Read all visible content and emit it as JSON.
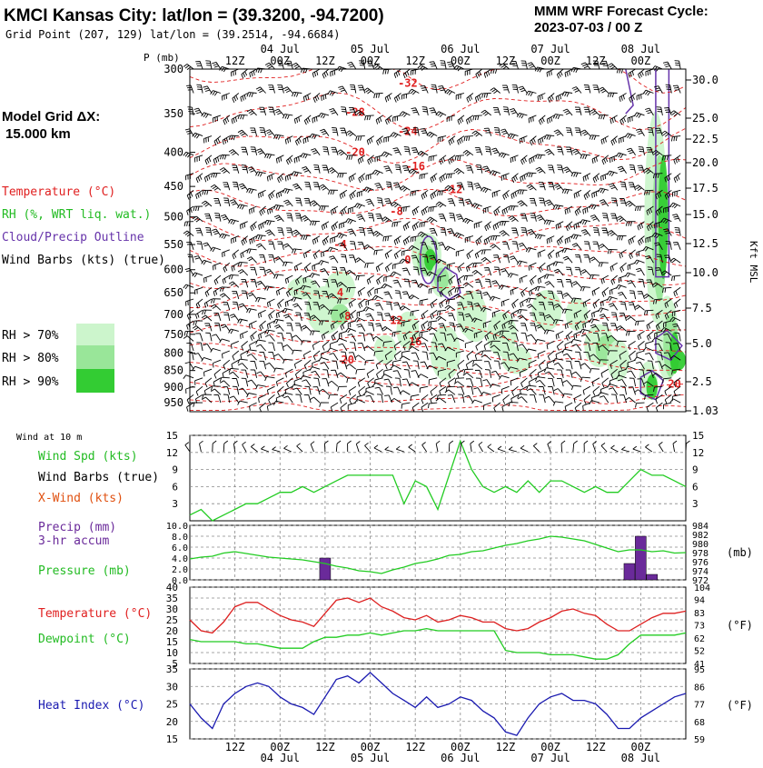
{
  "header": {
    "title": "KMCI Kansas City:  lat/lon = (39.3200, -94.7200)",
    "subtitle": "Grid Point (207, 129) lat/lon = (39.2514, -94.6684)",
    "cycle_line1": "MMM WRF Forecast Cycle:",
    "cycle_line2": "2023-07-03 / 00  Z"
  },
  "left_labels": {
    "grid_line1": "Model Grid ΔX:",
    "grid_line2": "15.000 km",
    "temperature": "Temperature (°C)",
    "rh": "RH (%, WRT liq. wat.)",
    "cloud": "Cloud/Precip Outline",
    "wind_barbs": "Wind Barbs (kts) (true)",
    "rh70": "RH > 70%",
    "rh80": "RH > 80%",
    "rh90": "RH > 90%",
    "wind10m": "Wind at 10 m",
    "wind_spd": "Wind Spd (kts)",
    "wind_barbs_true": "Wind Barbs (true)",
    "xwind": "X-Wind (kts)",
    "precip1": "Precip (mm)",
    "precip2": "3-hr accum",
    "pressure": "Pressure (mb)",
    "temp2": "Temperature (°C)",
    "dew": "Dewpoint (°C)",
    "heat": "Heat Index (°C)"
  },
  "colors": {
    "temp": "#e02020",
    "rh": "#33cc33",
    "rh70": "#ccf5cc",
    "rh80": "#99e699",
    "rh90": "#33cc33",
    "cloud": "#6633aa",
    "precip": "#6a2a9a",
    "dew": "#22cc22",
    "heat": "#1a1ab0"
  },
  "axes": {
    "top_units": "P (mb)",
    "pressure_levels": [
      "300",
      "350",
      "400",
      "450",
      "500",
      "550",
      "600",
      "650",
      "700",
      "750",
      "800",
      "850",
      "900",
      "950"
    ],
    "height_ticks": [
      "30.0",
      "25.0",
      "22.5",
      "20.0",
      "17.5",
      "15.0",
      "12.5",
      "10.0",
      "7.5",
      "5.0",
      "2.5",
      "1.03"
    ],
    "height_label": "Kft MSL",
    "time_hour_labels": [
      "12Z",
      "00Z",
      "12Z",
      "00Z",
      "12Z",
      "00Z",
      "12Z",
      "00Z",
      "12Z",
      "00Z"
    ],
    "time_hour_values": [
      12,
      24,
      36,
      48,
      60,
      72,
      84,
      96,
      108,
      120
    ],
    "day_labels": [
      "04 Jul",
      "05 Jul",
      "06 Jul",
      "07 Jul",
      "08 Jul"
    ],
    "day_values": [
      24,
      48,
      72,
      96,
      120
    ],
    "wind_ticks": [
      "15",
      "12",
      "9",
      "6",
      "3"
    ],
    "precip_ticks": [
      "10.0",
      "8.0",
      "6.0",
      "4.0",
      "2.0",
      "0.0"
    ],
    "press_ticks": [
      "984",
      "982",
      "980",
      "978",
      "976",
      "974",
      "972"
    ],
    "press_unit": "(mb)",
    "temp_c_ticks": [
      "40",
      "35",
      "30",
      "25",
      "20",
      "15",
      "10",
      "5"
    ],
    "temp_f_ticks": [
      "104",
      "94",
      "83",
      "73",
      "62",
      "52",
      "41"
    ],
    "temp_unit": "(°F)",
    "heat_c_ticks": [
      "35",
      "30",
      "25",
      "20",
      "15"
    ],
    "heat_f_ticks": [
      "95",
      "86",
      "77",
      "68",
      "59"
    ],
    "heat_unit": "(°F)"
  },
  "contour_labels": [
    {
      "text": "-32",
      "t": 58,
      "p": 315
    },
    {
      "text": "-28",
      "t": 44,
      "p": 348
    },
    {
      "text": "-24",
      "t": 58,
      "p": 372
    },
    {
      "text": "-20",
      "t": 44,
      "p": 400
    },
    {
      "text": "-16",
      "t": 60,
      "p": 420
    },
    {
      "text": "-12",
      "t": 70,
      "p": 455
    },
    {
      "text": "-8",
      "t": 55,
      "p": 490
    },
    {
      "text": "-4",
      "t": 40,
      "p": 550
    },
    {
      "text": "0",
      "t": 58,
      "p": 580
    },
    {
      "text": "4",
      "t": 40,
      "p": 650
    },
    {
      "text": "8",
      "t": 42,
      "p": 705
    },
    {
      "text": "12",
      "t": 55,
      "p": 715
    },
    {
      "text": "16",
      "t": 60,
      "p": 770
    },
    {
      "text": "20",
      "t": 42,
      "p": 820
    },
    {
      "text": "20",
      "t": 129,
      "p": 890
    }
  ],
  "chart_data": [
    {
      "type": "line",
      "x": [
        0,
        3,
        6,
        9,
        12,
        15,
        18,
        21,
        24,
        27,
        30,
        33,
        36,
        39,
        42,
        45,
        48,
        51,
        54,
        57,
        60,
        63,
        66,
        69,
        72,
        75,
        78,
        81,
        84,
        87,
        90,
        93,
        96,
        99,
        102,
        105,
        108,
        111,
        114,
        117,
        120,
        123,
        126,
        129,
        132
      ],
      "series": [
        {
          "name": "Wind Spd (kts)",
          "values": [
            1,
            2,
            0,
            1,
            2,
            3,
            3,
            4,
            5,
            5,
            6,
            5,
            6,
            7,
            8,
            8,
            8,
            8,
            8,
            3,
            7,
            6,
            2,
            8,
            14,
            9,
            6,
            5,
            6,
            5,
            7,
            5,
            7,
            7,
            6,
            5,
            6,
            5,
            5,
            7,
            9,
            8,
            8,
            7,
            6
          ]
        }
      ],
      "ylim": [
        0,
        15
      ]
    },
    {
      "type": "bar",
      "x": [
        36,
        117,
        120,
        123
      ],
      "values": [
        4.0,
        3.0,
        8.0,
        1.0
      ],
      "ylim": [
        0,
        10
      ]
    },
    {
      "type": "line",
      "x": [
        0,
        3,
        6,
        9,
        12,
        15,
        18,
        21,
        24,
        27,
        30,
        33,
        36,
        39,
        42,
        45,
        48,
        51,
        54,
        57,
        60,
        63,
        66,
        69,
        72,
        75,
        78,
        81,
        84,
        87,
        90,
        93,
        96,
        99,
        102,
        105,
        108,
        111,
        114,
        117,
        120,
        123,
        126,
        129,
        132
      ],
      "series": [
        {
          "name": "Pressure (mb)",
          "values": [
            976.6,
            977.0,
            977.2,
            977.9,
            978.2,
            977.8,
            977.4,
            977.0,
            976.8,
            976.6,
            976.4,
            976.0,
            975.6,
            975.0,
            974.6,
            974.0,
            973.8,
            973.4,
            974.2,
            974.8,
            975.6,
            976.0,
            976.6,
            977.4,
            977.6,
            978.2,
            978.4,
            979.0,
            979.6,
            980.0,
            980.6,
            981.0,
            981.6,
            981.4,
            981.0,
            980.6,
            979.8,
            979.0,
            978.2,
            978.6,
            978.6,
            978.2,
            978.4,
            977.9,
            978.0
          ]
        }
      ],
      "ylim": [
        972,
        984
      ]
    },
    {
      "type": "line",
      "x": [
        0,
        3,
        6,
        9,
        12,
        15,
        18,
        21,
        24,
        27,
        30,
        33,
        36,
        39,
        42,
        45,
        48,
        51,
        54,
        57,
        60,
        63,
        66,
        69,
        72,
        75,
        78,
        81,
        84,
        87,
        90,
        93,
        96,
        99,
        102,
        105,
        108,
        111,
        114,
        117,
        120,
        123,
        126,
        129,
        132
      ],
      "series": [
        {
          "name": "Temperature (°C)",
          "values": [
            25,
            20,
            19,
            24,
            31,
            33,
            33,
            30,
            27,
            25,
            24,
            22,
            28,
            34,
            35,
            33,
            35,
            31,
            29,
            26,
            25,
            27,
            24,
            25,
            27,
            26,
            24,
            24,
            21,
            20,
            21,
            24,
            26,
            29,
            30,
            28,
            27,
            23,
            20,
            20,
            23,
            26,
            28,
            28,
            29
          ]
        },
        {
          "name": "Dewpoint (°C)",
          "values": [
            16,
            15,
            15,
            15,
            15,
            14,
            14,
            13,
            12,
            12,
            12,
            15,
            17,
            17,
            18,
            18,
            19,
            18,
            19,
            20,
            20,
            21,
            20,
            20,
            20,
            20,
            20,
            20,
            11,
            10,
            10,
            10,
            9,
            9,
            9,
            8,
            7,
            7,
            9,
            14,
            18,
            18,
            18,
            18,
            19
          ]
        }
      ],
      "ylim": [
        5,
        40
      ]
    },
    {
      "type": "line",
      "x": [
        0,
        3,
        6,
        9,
        12,
        15,
        18,
        21,
        24,
        27,
        30,
        33,
        36,
        39,
        42,
        45,
        48,
        51,
        54,
        57,
        60,
        63,
        66,
        69,
        72,
        75,
        78,
        81,
        84,
        87,
        90,
        93,
        96,
        99,
        102,
        105,
        108,
        111,
        114,
        117,
        120,
        123,
        126,
        129,
        132
      ],
      "series": [
        {
          "name": "Heat Index (°C)",
          "values": [
            25,
            21,
            18,
            25,
            28,
            30,
            31,
            30,
            27,
            25,
            24,
            22,
            27,
            32,
            33,
            31,
            34,
            31,
            28,
            26,
            24,
            27,
            24,
            25,
            27,
            26,
            23,
            21,
            17,
            16,
            21,
            25,
            27,
            28,
            26,
            26,
            25,
            22,
            18,
            18,
            21,
            23,
            25,
            27,
            28
          ]
        }
      ],
      "ylim": [
        15,
        35
      ]
    }
  ]
}
